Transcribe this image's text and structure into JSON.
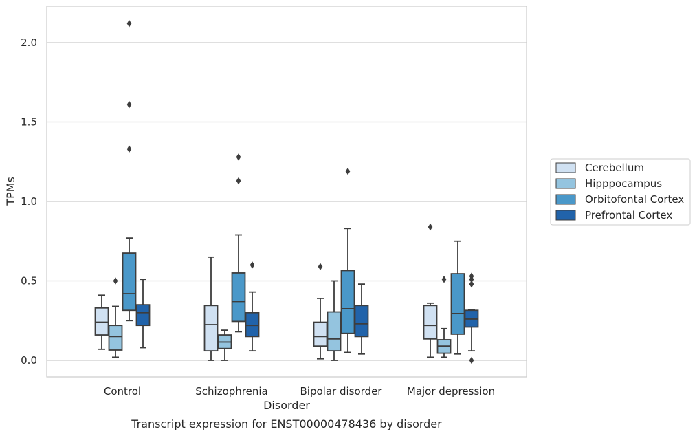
{
  "chart_data": {
    "type": "box",
    "title": "Transcript expression for ENST00000478436 by disorder",
    "xlabel": "Disorder",
    "ylabel": "TPMs",
    "ylim": [
      -0.1,
      2.23
    ],
    "yticks": [
      0.0,
      0.5,
      1.0,
      1.5,
      2.0
    ],
    "ytick_labels": [
      "0.0",
      "0.5",
      "1.0",
      "1.5",
      "2.0"
    ],
    "grid": "horizontal",
    "legend_position": "right",
    "categories": [
      "Control",
      "Schizophrenia",
      "Bipolar disorder",
      "Major depression"
    ],
    "series": [
      {
        "name": "Cerebellum",
        "color": "#d0e1f2",
        "boxes": [
          {
            "q1": 0.16,
            "median": 0.24,
            "q3": 0.33,
            "whislo": 0.07,
            "whishi": 0.41,
            "fliers": []
          },
          {
            "q1": 0.06,
            "median": 0.225,
            "q3": 0.345,
            "whislo": 0.0,
            "whishi": 0.65,
            "fliers": []
          },
          {
            "q1": 0.09,
            "median": 0.15,
            "q3": 0.24,
            "whislo": 0.01,
            "whishi": 0.39,
            "fliers": [
              0.59
            ]
          },
          {
            "q1": 0.135,
            "median": 0.22,
            "q3": 0.345,
            "whislo": 0.02,
            "whishi": 0.36,
            "fliers": [
              0.84
            ]
          }
        ]
      },
      {
        "name": "Hipppocampus",
        "color": "#94c4df",
        "boxes": [
          {
            "q1": 0.065,
            "median": 0.15,
            "q3": 0.22,
            "whislo": 0.02,
            "whishi": 0.34,
            "fliers": [
              0.5
            ]
          },
          {
            "q1": 0.075,
            "median": 0.115,
            "q3": 0.16,
            "whislo": 0.0,
            "whishi": 0.19,
            "fliers": []
          },
          {
            "q1": 0.06,
            "median": 0.135,
            "q3": 0.305,
            "whislo": 0.0,
            "whishi": 0.5,
            "fliers": []
          },
          {
            "q1": 0.045,
            "median": 0.09,
            "q3": 0.13,
            "whislo": 0.02,
            "whishi": 0.2,
            "fliers": [
              0.51
            ]
          }
        ]
      },
      {
        "name": "Orbitofontal Cortex",
        "color": "#4a98c9",
        "boxes": [
          {
            "q1": 0.315,
            "median": 0.42,
            "q3": 0.675,
            "whislo": 0.25,
            "whishi": 0.77,
            "fliers": [
              1.33,
              1.61,
              2.12
            ]
          },
          {
            "q1": 0.245,
            "median": 0.37,
            "q3": 0.55,
            "whislo": 0.18,
            "whishi": 0.79,
            "fliers": [
              1.13,
              1.28
            ]
          },
          {
            "q1": 0.17,
            "median": 0.325,
            "q3": 0.565,
            "whislo": 0.05,
            "whishi": 0.83,
            "fliers": [
              1.19
            ]
          },
          {
            "q1": 0.165,
            "median": 0.295,
            "q3": 0.545,
            "whislo": 0.04,
            "whishi": 0.75,
            "fliers": []
          }
        ]
      },
      {
        "name": "Prefrontal Cortex",
        "color": "#2163aa",
        "boxes": [
          {
            "q1": 0.22,
            "median": 0.3,
            "q3": 0.35,
            "whislo": 0.08,
            "whishi": 0.51,
            "fliers": []
          },
          {
            "q1": 0.15,
            "median": 0.22,
            "q3": 0.3,
            "whislo": 0.06,
            "whishi": 0.43,
            "fliers": [
              0.6
            ]
          },
          {
            "q1": 0.15,
            "median": 0.23,
            "q3": 0.345,
            "whislo": 0.04,
            "whishi": 0.48,
            "fliers": []
          },
          {
            "q1": 0.21,
            "median": 0.26,
            "q3": 0.315,
            "whislo": 0.06,
            "whishi": 0.32,
            "fliers": [
              0.0,
              0.48,
              0.51,
              0.53
            ]
          }
        ]
      }
    ]
  }
}
